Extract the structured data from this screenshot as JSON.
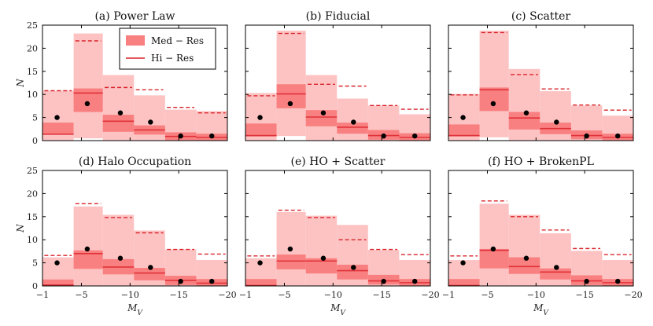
{
  "figure": {
    "xlabel": "M_V",
    "ylabel": "N"
  },
  "legend": {
    "med_res_label": "Med − Res",
    "hi_res_label": "Hi − Res",
    "placement": "top-right of panel (a)"
  },
  "colors": {
    "outer_band": "#fdc3c3",
    "inner_band": "#f98080",
    "median_line": "#e0323a",
    "hi_res_line": "#d8232a",
    "observed": "#000000",
    "frame": "#000000"
  },
  "chart_data": [
    {
      "type": "bar",
      "title": "(a) Power Law",
      "xlabel": "",
      "ylabel": "N",
      "xlim": [
        -1,
        -20
      ],
      "ylim": [
        0,
        25
      ],
      "xticks": [],
      "yticks": [
        0,
        5,
        10,
        15,
        20,
        25
      ],
      "bin_edges": [
        -1,
        -4.2,
        -7.2,
        -10.4,
        -13.6,
        -16.8,
        -20
      ],
      "outer": [
        [
          0,
          10.8
        ],
        [
          0.5,
          23.2
        ],
        [
          0,
          14.2
        ],
        [
          0,
          9.8
        ],
        [
          0,
          6.7
        ],
        [
          0,
          6.4
        ]
      ],
      "inner": [
        [
          1.4,
          3.9
        ],
        [
          6.2,
          11.3
        ],
        [
          1.9,
          5.6
        ],
        [
          1.3,
          3.3
        ],
        [
          0.1,
          1.8
        ],
        [
          0,
          1.5
        ]
      ],
      "median": [
        1.4,
        10.3,
        4.2,
        2.3,
        0.9,
        0.7
      ],
      "hi_res": [
        10.8,
        21.6,
        11.5,
        11.0,
        7.2,
        6.0
      ],
      "observed": {
        "x": [
          -2.5,
          -5.6,
          -9.0,
          -12.1,
          -15.2,
          -18.4
        ],
        "y": [
          5,
          8,
          6,
          4,
          1,
          1
        ]
      },
      "show_legend": true
    },
    {
      "type": "bar",
      "title": "(b) Fiducial",
      "xlabel": "",
      "ylabel": "",
      "xlim": [
        -1,
        -20
      ],
      "ylim": [
        0,
        25
      ],
      "xticks": [],
      "yticks": [],
      "bin_edges": [
        -1,
        -4.2,
        -7.2,
        -10.4,
        -13.6,
        -16.8,
        -20
      ],
      "outer": [
        [
          0,
          10.3
        ],
        [
          1.0,
          23.8
        ],
        [
          0,
          14.2
        ],
        [
          0,
          9.1
        ],
        [
          0,
          7.6
        ],
        [
          0,
          5.7
        ]
      ],
      "inner": [
        [
          0.9,
          3.7
        ],
        [
          7.0,
          12.2
        ],
        [
          3.1,
          6.6
        ],
        [
          1.5,
          3.9
        ],
        [
          0.2,
          2.3
        ],
        [
          0,
          1.6
        ]
      ],
      "median": [
        1.1,
        10.1,
        5.1,
        2.9,
        1.1,
        0.7
      ],
      "hi_res": [
        9.7,
        23.2,
        12.2,
        11.8,
        7.6,
        6.8
      ],
      "observed": {
        "x": [
          -2.5,
          -5.6,
          -9.0,
          -12.1,
          -15.2,
          -18.4
        ],
        "y": [
          5,
          8,
          6,
          4,
          1,
          1
        ]
      },
      "show_legend": false
    },
    {
      "type": "bar",
      "title": "(c) Scatter",
      "xlabel": "",
      "ylabel": "",
      "xlim": [
        -1,
        -20
      ],
      "ylim": [
        0,
        25
      ],
      "xticks": [],
      "yticks": [],
      "bin_edges": [
        -1,
        -4.2,
        -7.2,
        -10.4,
        -13.6,
        -16.8,
        -20
      ],
      "outer": [
        [
          0,
          10.1
        ],
        [
          0.7,
          23.8
        ],
        [
          0,
          15.5
        ],
        [
          0,
          10.7
        ],
        [
          0,
          7.6
        ],
        [
          0,
          5.4
        ]
      ],
      "inner": [
        [
          0.9,
          3.5
        ],
        [
          6.4,
          11.5
        ],
        [
          2.4,
          6.2
        ],
        [
          1.4,
          3.9
        ],
        [
          0.3,
          2.2
        ],
        [
          0,
          1.5
        ]
      ],
      "median": [
        1.1,
        11.0,
        4.9,
        2.6,
        1.1,
        0.7
      ],
      "hi_res": [
        9.9,
        23.4,
        14.3,
        11.2,
        7.7,
        6.6
      ],
      "observed": {
        "x": [
          -2.5,
          -5.6,
          -9.0,
          -12.1,
          -15.2,
          -18.4
        ],
        "y": [
          5,
          8,
          6,
          4,
          1,
          1
        ]
      },
      "show_legend": false
    },
    {
      "type": "bar",
      "title": "(d) Halo Occupation",
      "xlabel": "M_V",
      "ylabel": "N",
      "xlim": [
        -1,
        -20
      ],
      "ylim": [
        0,
        25
      ],
      "xticks": [
        -1,
        -5,
        -10,
        -15,
        -20
      ],
      "yticks": [
        0,
        5,
        10,
        15,
        20,
        25
      ],
      "bin_edges": [
        -1,
        -4.2,
        -7.2,
        -10.4,
        -13.6,
        -16.8,
        -20
      ],
      "outer": [
        [
          0,
          6.2
        ],
        [
          0,
          17.2
        ],
        [
          0,
          15.4
        ],
        [
          0,
          12.0
        ],
        [
          0,
          7.9
        ],
        [
          0,
          5.6
        ]
      ],
      "inner": [
        [
          0,
          1.4
        ],
        [
          3.7,
          7.7
        ],
        [
          2.5,
          5.8
        ],
        [
          1.2,
          3.9
        ],
        [
          0.2,
          2.2
        ],
        [
          0,
          1.5
        ]
      ],
      "median": [
        0.2,
        7.0,
        4.1,
        2.8,
        1.2,
        0.6
      ],
      "hi_res": [
        6.6,
        17.8,
        14.8,
        11.5,
        7.9,
        6.9
      ],
      "observed": {
        "x": [
          -2.5,
          -5.6,
          -9.0,
          -12.1,
          -15.2,
          -18.4
        ],
        "y": [
          5,
          8,
          6,
          4,
          1,
          1
        ]
      },
      "show_legend": false
    },
    {
      "type": "bar",
      "title": "(e) HO + Scatter",
      "xlabel": "M_V",
      "ylabel": "",
      "xlim": [
        -1,
        -20
      ],
      "ylim": [
        0,
        25
      ],
      "xticks": [
        -1,
        -5,
        -10,
        -15,
        -20
      ],
      "yticks": [],
      "bin_edges": [
        -1,
        -4.2,
        -7.2,
        -10.4,
        -13.6,
        -16.8,
        -20
      ],
      "outer": [
        [
          0,
          6.0
        ],
        [
          0,
          16.0
        ],
        [
          0,
          15.2
        ],
        [
          0,
          13.2
        ],
        [
          0,
          7.8
        ],
        [
          0,
          5.6
        ]
      ],
      "inner": [
        [
          0,
          1.5
        ],
        [
          3.6,
          6.8
        ],
        [
          2.7,
          6.0
        ],
        [
          1.4,
          4.6
        ],
        [
          0.3,
          2.4
        ],
        [
          0,
          1.5
        ]
      ],
      "median": [
        0.1,
        5.4,
        5.4,
        3.3,
        1.1,
        0.7
      ],
      "hi_res": [
        6.5,
        16.4,
        14.8,
        10.0,
        7.9,
        6.8
      ],
      "observed": {
        "x": [
          -2.5,
          -5.6,
          -9.0,
          -12.1,
          -15.2,
          -18.4
        ],
        "y": [
          5,
          8,
          6,
          4,
          1,
          1
        ]
      },
      "show_legend": false
    },
    {
      "type": "bar",
      "title": "(f) HO + BrokenPL",
      "xlabel": "M_V",
      "ylabel": "",
      "xlim": [
        -1,
        -20
      ],
      "ylim": [
        0,
        25
      ],
      "xticks": [
        -1,
        -5,
        -10,
        -15,
        -20
      ],
      "yticks": [],
      "bin_edges": [
        -1,
        -4.2,
        -7.2,
        -10.4,
        -13.6,
        -16.8,
        -20
      ],
      "outer": [
        [
          0,
          5.6
        ],
        [
          0,
          17.8
        ],
        [
          0,
          15.4
        ],
        [
          0,
          11.4
        ],
        [
          0,
          7.6
        ],
        [
          0,
          5.6
        ]
      ],
      "inner": [
        [
          0,
          1.5
        ],
        [
          3.8,
          8.0
        ],
        [
          2.6,
          6.2
        ],
        [
          1.4,
          3.8
        ],
        [
          0.2,
          2.3
        ],
        [
          0,
          1.5
        ]
      ],
      "median": [
        0.1,
        7.7,
        4.2,
        3.0,
        1.1,
        0.7
      ],
      "hi_res": [
        6.5,
        18.4,
        15.0,
        12.1,
        8.1,
        6.8
      ],
      "observed": {
        "x": [
          -2.5,
          -5.6,
          -9.0,
          -12.1,
          -15.2,
          -18.4
        ],
        "y": [
          5,
          8,
          6,
          4,
          1,
          1
        ]
      },
      "show_legend": false
    }
  ]
}
